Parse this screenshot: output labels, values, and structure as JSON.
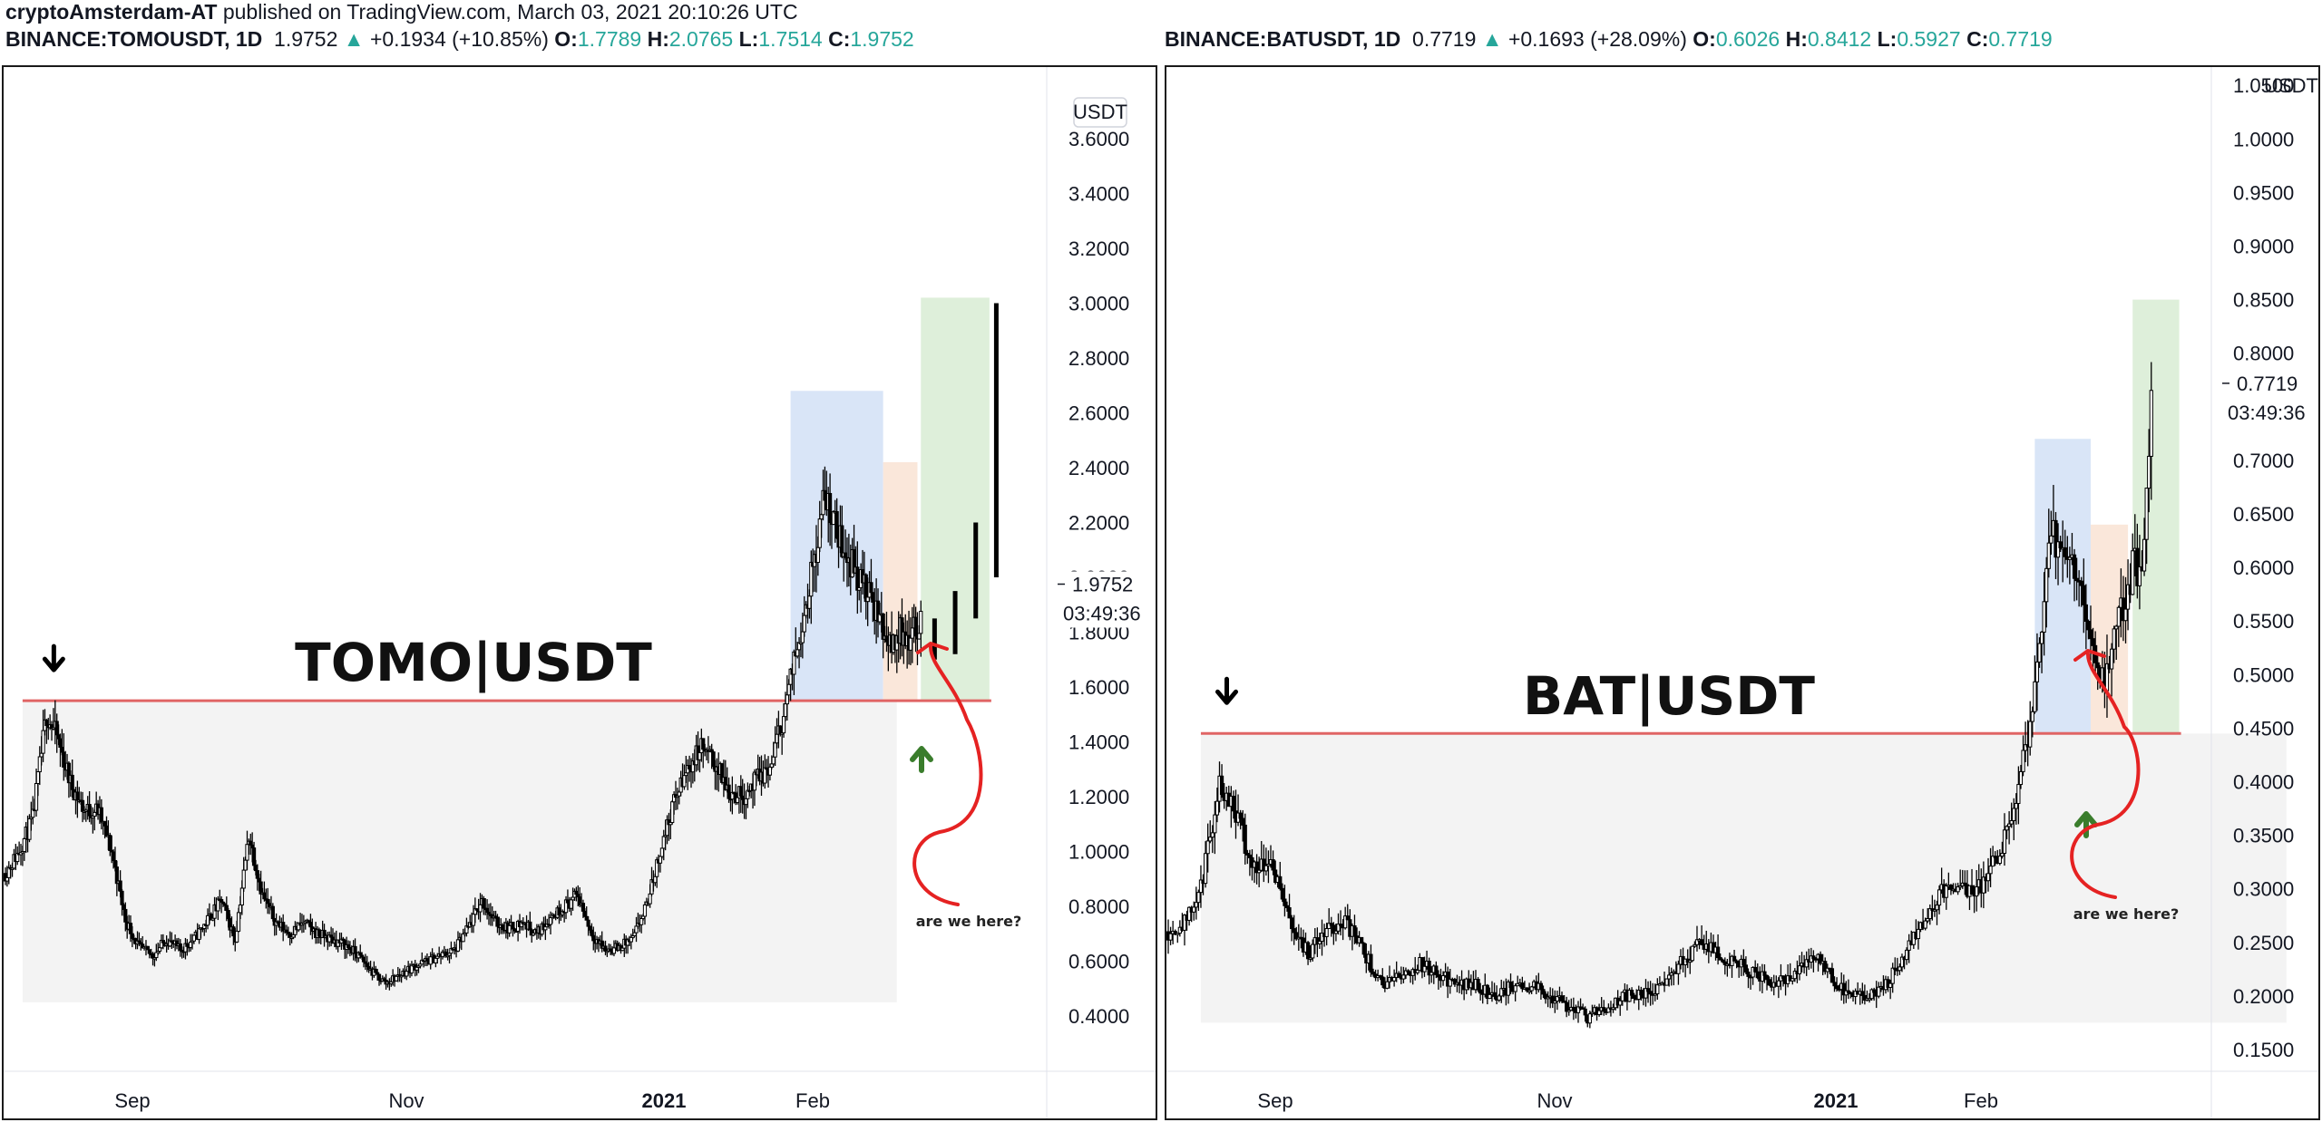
{
  "publisher": {
    "author": "cryptoAmsterdam-AT",
    "text": " published on TradingView.com, March 03, 2021 20:10:26 UTC"
  },
  "colors": {
    "support_line": "#e06464",
    "zone_grey": "#f3f3f3",
    "zone_blue": "#d2e1f6",
    "zone_orange": "#f9e3d3",
    "zone_green": "#d8ecd4",
    "up": "#26a69a",
    "arrow_red": "#e52222",
    "arrow_green": "#3a7d2c"
  },
  "chart_data": [
    {
      "type": "candlestick",
      "symbol": "BINANCE:TOMOUSDT, 1D",
      "legend": {
        "price": "1.9752",
        "change": "+0.1934 (+10.85%)",
        "o_label": "O:",
        "o": "1.7789",
        "h_label": "H:",
        "h": "2.0765",
        "l_label": "L:",
        "l": "1.7514",
        "c_label": "C:",
        "c": "1.9752"
      },
      "title": "TOMO|USDT",
      "currency_label": "USDT",
      "last_price_label": "1.9752",
      "countdown": "03:49:36",
      "annotation": "are we here?",
      "y_ticks": [
        "3.6000",
        "3.4000",
        "3.2000",
        "3.0000",
        "2.8000",
        "2.6000",
        "2.4000",
        "2.2000",
        "2.0000",
        "1.8000",
        "1.6000",
        "1.4000",
        "1.2000",
        "1.0000",
        "0.8000",
        "0.6000",
        "0.4000"
      ],
      "x_ticks": [
        {
          "label": "Sep",
          "bold": false
        },
        {
          "label": "Nov",
          "bold": false
        },
        {
          "label": "2021",
          "bold": true
        },
        {
          "label": "Feb",
          "bold": false
        }
      ],
      "ylim": [
        0.3,
        3.75
      ],
      "support_level": 1.55,
      "anchors": [
        [
          0,
          0.92
        ],
        [
          8,
          1.0
        ],
        [
          16,
          1.12
        ],
        [
          24,
          1.5
        ],
        [
          30,
          1.42
        ],
        [
          38,
          1.25
        ],
        [
          46,
          1.15
        ],
        [
          54,
          1.15
        ],
        [
          62,
          1.0
        ],
        [
          70,
          0.75
        ],
        [
          78,
          0.65
        ],
        [
          86,
          0.62
        ],
        [
          94,
          0.68
        ],
        [
          102,
          0.64
        ],
        [
          110,
          0.68
        ],
        [
          118,
          0.75
        ],
        [
          126,
          0.82
        ],
        [
          134,
          0.68
        ],
        [
          142,
          1.06
        ],
        [
          150,
          0.84
        ],
        [
          158,
          0.74
        ],
        [
          166,
          0.7
        ],
        [
          174,
          0.74
        ],
        [
          182,
          0.7
        ],
        [
          190,
          0.68
        ],
        [
          198,
          0.66
        ],
        [
          206,
          0.62
        ],
        [
          214,
          0.56
        ],
        [
          222,
          0.52
        ],
        [
          230,
          0.55
        ],
        [
          238,
          0.58
        ],
        [
          246,
          0.6
        ],
        [
          254,
          0.62
        ],
        [
          262,
          0.64
        ],
        [
          270,
          0.72
        ],
        [
          278,
          0.82
        ],
        [
          286,
          0.74
        ],
        [
          294,
          0.72
        ],
        [
          302,
          0.74
        ],
        [
          310,
          0.7
        ],
        [
          318,
          0.76
        ],
        [
          326,
          0.8
        ],
        [
          334,
          0.84
        ],
        [
          342,
          0.7
        ],
        [
          350,
          0.64
        ],
        [
          358,
          0.65
        ],
        [
          366,
          0.68
        ],
        [
          374,
          0.8
        ],
        [
          382,
          1.0
        ],
        [
          390,
          1.18
        ],
        [
          398,
          1.3
        ],
        [
          406,
          1.38
        ],
        [
          414,
          1.32
        ],
        [
          422,
          1.22
        ],
        [
          430,
          1.2
        ],
        [
          438,
          1.26
        ],
        [
          446,
          1.3
        ],
        [
          454,
          1.5
        ],
        [
          462,
          1.75
        ],
        [
          470,
          2.0
        ],
        [
          478,
          2.3
        ],
        [
          486,
          2.15
        ],
        [
          494,
          2.05
        ],
        [
          502,
          1.95
        ],
        [
          510,
          1.85
        ],
        [
          516,
          1.75
        ],
        [
          522,
          1.8
        ],
        [
          528,
          1.78
        ],
        [
          534,
          1.85
        ]
      ],
      "projection": [
        [
          542,
          1.7,
          1.85
        ],
        [
          554,
          1.72,
          1.95
        ],
        [
          566,
          1.85,
          2.2
        ],
        [
          578,
          2.0,
          3.0
        ]
      ],
      "zones": {
        "grey": {
          "x0": 10,
          "x1": 520,
          "y_top": 1.55,
          "y_bottom": 0.45
        },
        "blue": {
          "x0": 458,
          "x1": 512,
          "y_top": 2.68,
          "y_bottom": 1.55
        },
        "orange": {
          "x0": 512,
          "x1": 532,
          "y_top": 2.42,
          "y_bottom": 1.55
        },
        "green": {
          "x0": 534,
          "x1": 574,
          "y_top": 3.02,
          "y_bottom": 1.55
        }
      }
    },
    {
      "type": "candlestick",
      "symbol": "BINANCE:BATUSDT, 1D",
      "legend": {
        "price": "0.7719",
        "change": "+0.1693 (+28.09%)",
        "o_label": "O:",
        "o": "0.6026",
        "h_label": "H:",
        "h": "0.8412",
        "l_label": "L:",
        "l": "0.5927",
        "c_label": "C:",
        "c": "0.7719"
      },
      "title": "BAT|USDT",
      "currency_label": "USDT",
      "last_price_label": "0.7719",
      "countdown": "03:49:36",
      "annotation": "are we here?",
      "y_ticks": [
        "1.0500",
        "1.0000",
        "0.9500",
        "0.9000",
        "0.8500",
        "0.8000",
        "0.7500",
        "0.7000",
        "0.6500",
        "0.6000",
        "0.5500",
        "0.5000",
        "0.4500",
        "0.4000",
        "0.3500",
        "0.3000",
        "0.2500",
        "0.2000",
        "0.1500"
      ],
      "x_ticks": [
        {
          "label": "Sep",
          "bold": false
        },
        {
          "label": "Nov",
          "bold": false
        },
        {
          "label": "2021",
          "bold": true
        },
        {
          "label": "Feb",
          "bold": false
        }
      ],
      "ylim": [
        0.12,
        1.07
      ],
      "support_level": 0.445,
      "anchors": [
        [
          0,
          0.26
        ],
        [
          8,
          0.27
        ],
        [
          14,
          0.3
        ],
        [
          22,
          0.4
        ],
        [
          28,
          0.38
        ],
        [
          36,
          0.32
        ],
        [
          44,
          0.33
        ],
        [
          52,
          0.27
        ],
        [
          60,
          0.24
        ],
        [
          68,
          0.26
        ],
        [
          76,
          0.27
        ],
        [
          84,
          0.24
        ],
        [
          92,
          0.21
        ],
        [
          100,
          0.22
        ],
        [
          108,
          0.23
        ],
        [
          116,
          0.22
        ],
        [
          124,
          0.21
        ],
        [
          132,
          0.21
        ],
        [
          140,
          0.2
        ],
        [
          148,
          0.21
        ],
        [
          156,
          0.21
        ],
        [
          164,
          0.2
        ],
        [
          172,
          0.19
        ],
        [
          180,
          0.18
        ],
        [
          188,
          0.19
        ],
        [
          196,
          0.2
        ],
        [
          204,
          0.2
        ],
        [
          212,
          0.21
        ],
        [
          220,
          0.23
        ],
        [
          228,
          0.25
        ],
        [
          236,
          0.24
        ],
        [
          244,
          0.23
        ],
        [
          252,
          0.22
        ],
        [
          260,
          0.21
        ],
        [
          268,
          0.22
        ],
        [
          276,
          0.24
        ],
        [
          284,
          0.22
        ],
        [
          292,
          0.2
        ],
        [
          300,
          0.2
        ],
        [
          308,
          0.21
        ],
        [
          316,
          0.24
        ],
        [
          324,
          0.27
        ],
        [
          332,
          0.3
        ],
        [
          340,
          0.3
        ],
        [
          348,
          0.3
        ],
        [
          356,
          0.33
        ],
        [
          364,
          0.38
        ],
        [
          372,
          0.48
        ],
        [
          378,
          0.63
        ],
        [
          384,
          0.62
        ],
        [
          390,
          0.6
        ],
        [
          396,
          0.52
        ],
        [
          402,
          0.5
        ],
        [
          408,
          0.55
        ],
        [
          414,
          0.6
        ],
        [
          418,
          0.6
        ],
        [
          422,
          0.76
        ]
      ],
      "projection": [],
      "zones": {
        "grey": {
          "x0": 14,
          "x1": 480,
          "y_top": 0.445,
          "y_bottom": 0.175
        },
        "blue": {
          "x0": 372,
          "x1": 396,
          "y_top": 0.72,
          "y_bottom": 0.445
        },
        "orange": {
          "x0": 396,
          "x1": 412,
          "y_top": 0.64,
          "y_bottom": 0.445
        },
        "green": {
          "x0": 414,
          "x1": 434,
          "y_top": 0.85,
          "y_bottom": 0.445
        }
      }
    }
  ]
}
